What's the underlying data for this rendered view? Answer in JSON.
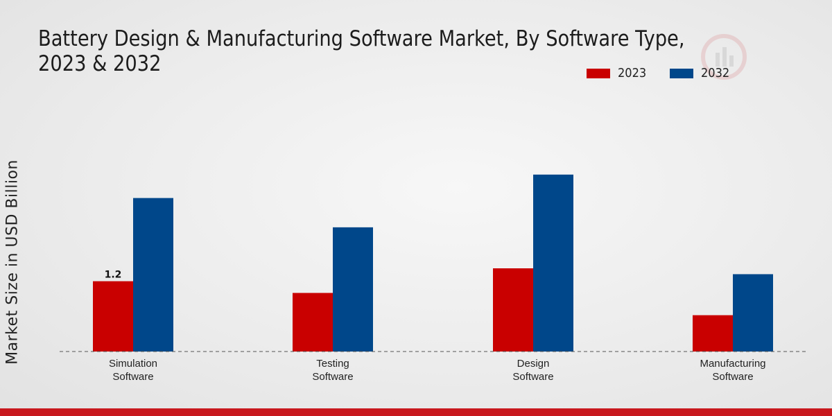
{
  "chart_data": {
    "type": "bar",
    "title": "Battery Design & Manufacturing Software Market, By Software Type, 2023 & 2032",
    "xlabel": "",
    "ylabel": "Market Size in USD Billion",
    "categories": [
      [
        "Simulation",
        "Software"
      ],
      [
        "Testing",
        "Software"
      ],
      [
        "Design",
        "Software"
      ],
      [
        "Manufacturing",
        "Software"
      ]
    ],
    "series": [
      {
        "name": "2023",
        "color": "#c90000",
        "values": [
          1.2,
          1.0,
          1.42,
          0.62
        ]
      },
      {
        "name": "2032",
        "color": "#00478a",
        "values": [
          2.62,
          2.12,
          3.02,
          1.32
        ]
      }
    ],
    "data_labels": [
      {
        "series": 0,
        "index": 0,
        "text": "1.2"
      }
    ],
    "ylim": [
      0,
      6.0
    ],
    "grid": false,
    "legend_position": "top-right"
  }
}
